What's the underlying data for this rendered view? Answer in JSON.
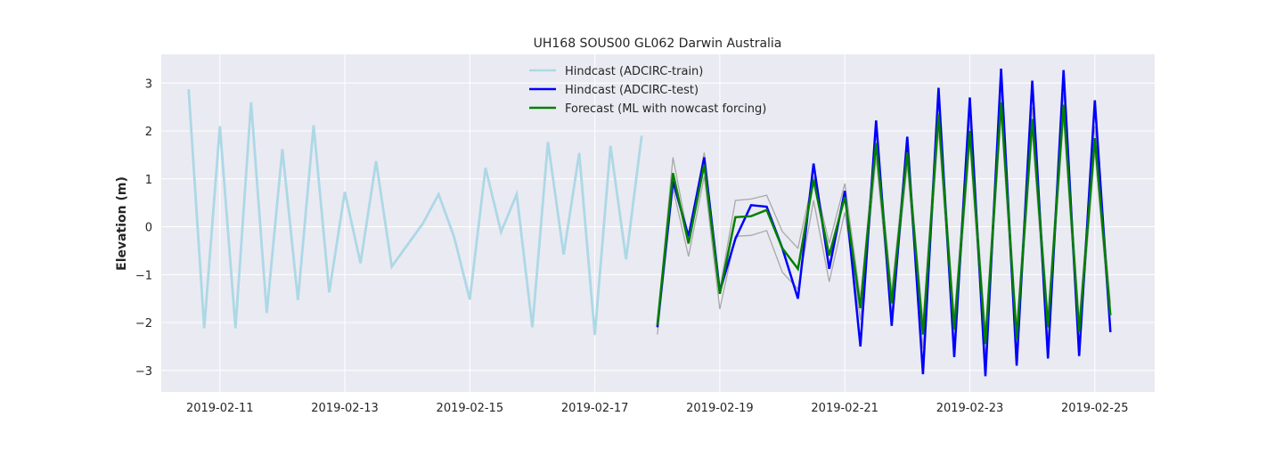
{
  "chart_data": {
    "type": "line",
    "title": "UH168 SOUS00 GL062 Darwin Australia",
    "xlabel": "",
    "ylabel": "Elevation (m)",
    "xlim": [
      "2019-02-10T01:30",
      "2019-02-25T23:00"
    ],
    "ylim": [
      -3.45,
      3.6
    ],
    "yticks": [
      -3,
      -2,
      -1,
      0,
      1,
      2,
      3
    ],
    "xticks": [
      "2019-02-11",
      "2019-02-13",
      "2019-02-15",
      "2019-02-17",
      "2019-02-19",
      "2019-02-21",
      "2019-02-23",
      "2019-02-25"
    ],
    "grid": true,
    "legend_position": "top-center",
    "colors": {
      "background": "#eaeaf2",
      "grid": "#ffffff",
      "train": "#add8e6",
      "test": "#0000ff",
      "forecast": "#008000",
      "band": "#a9a9a9"
    },
    "series": [
      {
        "name": "Hindcast (ADCIRC-train)",
        "role": "train",
        "points": [
          [
            "2019-02-10T12:00",
            2.87
          ],
          [
            "2019-02-10T18:00",
            -2.12
          ],
          [
            "2019-02-11T00:00",
            2.1
          ],
          [
            "2019-02-11T06:00",
            -2.12
          ],
          [
            "2019-02-11T12:00",
            2.6
          ],
          [
            "2019-02-11T18:00",
            -1.8
          ],
          [
            "2019-02-12T00:00",
            1.62
          ],
          [
            "2019-02-12T06:00",
            -1.53
          ],
          [
            "2019-02-12T12:00",
            2.12
          ],
          [
            "2019-02-12T18:00",
            -1.37
          ],
          [
            "2019-02-13T00:00",
            0.73
          ],
          [
            "2019-02-13T06:00",
            -0.76
          ],
          [
            "2019-02-13T12:00",
            1.37
          ],
          [
            "2019-02-13T18:00",
            -0.83
          ],
          [
            "2019-02-14T00:00",
            -0.38
          ],
          [
            "2019-02-14T06:00",
            0.07
          ],
          [
            "2019-02-14T12:00",
            0.68
          ],
          [
            "2019-02-14T18:00",
            -0.22
          ],
          [
            "2019-02-15T00:00",
            -1.52
          ],
          [
            "2019-02-15T06:00",
            1.23
          ],
          [
            "2019-02-15T12:00",
            -0.11
          ],
          [
            "2019-02-15T18:00",
            0.68
          ],
          [
            "2019-02-16T00:00",
            -2.1
          ],
          [
            "2019-02-16T06:00",
            1.77
          ],
          [
            "2019-02-16T12:00",
            -0.58
          ],
          [
            "2019-02-16T18:00",
            1.54
          ],
          [
            "2019-02-17T00:00",
            -2.26
          ],
          [
            "2019-02-17T06:00",
            1.69
          ],
          [
            "2019-02-17T12:00",
            -0.68
          ],
          [
            "2019-02-17T18:00",
            1.9
          ]
        ]
      },
      {
        "name": "Hindcast (ADCIRC-test)",
        "role": "test",
        "points": [
          [
            "2019-02-18T00:00",
            -2.1
          ],
          [
            "2019-02-18T06:00",
            0.95
          ],
          [
            "2019-02-18T12:00",
            -0.2
          ],
          [
            "2019-02-18T18:00",
            1.45
          ],
          [
            "2019-02-19T00:00",
            -1.35
          ],
          [
            "2019-02-19T06:00",
            -0.25
          ],
          [
            "2019-02-19T12:00",
            0.45
          ],
          [
            "2019-02-19T18:00",
            0.42
          ],
          [
            "2019-02-20T00:00",
            -0.45
          ],
          [
            "2019-02-20T06:00",
            -1.5
          ],
          [
            "2019-02-20T12:00",
            1.32
          ],
          [
            "2019-02-20T18:00",
            -0.88
          ],
          [
            "2019-02-21T00:00",
            0.75
          ],
          [
            "2019-02-21T06:00",
            -2.5
          ],
          [
            "2019-02-21T12:00",
            2.22
          ],
          [
            "2019-02-21T18:00",
            -2.07
          ],
          [
            "2019-02-22T00:00",
            1.88
          ],
          [
            "2019-02-22T06:00",
            -3.08
          ],
          [
            "2019-02-22T12:00",
            2.9
          ],
          [
            "2019-02-22T18:00",
            -2.72
          ],
          [
            "2019-02-23T00:00",
            2.7
          ],
          [
            "2019-02-23T06:00",
            -3.12
          ],
          [
            "2019-02-23T12:00",
            3.3
          ],
          [
            "2019-02-23T18:00",
            -2.9
          ],
          [
            "2019-02-24T00:00",
            3.05
          ],
          [
            "2019-02-24T06:00",
            -2.75
          ],
          [
            "2019-02-24T12:00",
            3.27
          ],
          [
            "2019-02-24T18:00",
            -2.7
          ],
          [
            "2019-02-25T00:00",
            2.64
          ],
          [
            "2019-02-25T06:00",
            -2.2
          ]
        ]
      },
      {
        "name": "Forecast (ML with nowcast forcing)",
        "role": "forecast",
        "points": [
          [
            "2019-02-18T00:00",
            -2.05
          ],
          [
            "2019-02-18T06:00",
            1.12
          ],
          [
            "2019-02-18T12:00",
            -0.35
          ],
          [
            "2019-02-18T18:00",
            1.3
          ],
          [
            "2019-02-19T00:00",
            -1.4
          ],
          [
            "2019-02-19T06:00",
            0.2
          ],
          [
            "2019-02-19T12:00",
            0.22
          ],
          [
            "2019-02-19T18:00",
            0.35
          ],
          [
            "2019-02-20T00:00",
            -0.45
          ],
          [
            "2019-02-20T06:00",
            -0.88
          ],
          [
            "2019-02-20T12:00",
            0.98
          ],
          [
            "2019-02-20T18:00",
            -0.6
          ],
          [
            "2019-02-21T00:00",
            0.62
          ],
          [
            "2019-02-21T06:00",
            -1.7
          ],
          [
            "2019-02-21T12:00",
            1.75
          ],
          [
            "2019-02-21T18:00",
            -1.6
          ],
          [
            "2019-02-22T00:00",
            1.55
          ],
          [
            "2019-02-22T06:00",
            -2.25
          ],
          [
            "2019-02-22T12:00",
            2.35
          ],
          [
            "2019-02-22T18:00",
            -2.15
          ],
          [
            "2019-02-23T00:00",
            2.0
          ],
          [
            "2019-02-23T06:00",
            -2.45
          ],
          [
            "2019-02-23T12:00",
            2.6
          ],
          [
            "2019-02-23T18:00",
            -2.35
          ],
          [
            "2019-02-24T00:00",
            2.25
          ],
          [
            "2019-02-24T06:00",
            -2.1
          ],
          [
            "2019-02-24T12:00",
            2.55
          ],
          [
            "2019-02-24T18:00",
            -2.2
          ],
          [
            "2019-02-25T00:00",
            1.85
          ],
          [
            "2019-02-25T06:00",
            -1.85
          ]
        ]
      },
      {
        "role": "band-upper",
        "points": [
          [
            "2019-02-18T00:00",
            -2.0
          ],
          [
            "2019-02-18T06:00",
            1.45
          ],
          [
            "2019-02-18T12:00",
            -0.25
          ],
          [
            "2019-02-18T18:00",
            1.55
          ],
          [
            "2019-02-19T00:00",
            -1.3
          ],
          [
            "2019-02-19T06:00",
            0.55
          ],
          [
            "2019-02-19T12:00",
            0.58
          ],
          [
            "2019-02-19T18:00",
            0.66
          ],
          [
            "2019-02-20T00:00",
            -0.1
          ],
          [
            "2019-02-20T06:00",
            -0.45
          ],
          [
            "2019-02-20T12:00",
            1.05
          ],
          [
            "2019-02-20T18:00",
            -0.35
          ],
          [
            "2019-02-21T00:00",
            0.9
          ],
          [
            "2019-02-21T06:00",
            -1.5
          ],
          [
            "2019-02-21T12:00",
            1.95
          ],
          [
            "2019-02-21T18:00",
            -1.35
          ],
          [
            "2019-02-22T00:00",
            1.75
          ],
          [
            "2019-02-22T06:00",
            -2.0
          ],
          [
            "2019-02-22T12:00",
            2.6
          ],
          [
            "2019-02-22T18:00",
            -1.9
          ],
          [
            "2019-02-23T00:00",
            2.25
          ],
          [
            "2019-02-23T06:00",
            -2.2
          ],
          [
            "2019-02-23T12:00",
            2.85
          ],
          [
            "2019-02-23T18:00",
            -2.1
          ],
          [
            "2019-02-24T00:00",
            2.5
          ],
          [
            "2019-02-24T06:00",
            -1.85
          ],
          [
            "2019-02-24T12:00",
            2.8
          ],
          [
            "2019-02-24T18:00",
            -1.95
          ],
          [
            "2019-02-25T00:00",
            2.1
          ],
          [
            "2019-02-25T06:00",
            -1.6
          ]
        ]
      },
      {
        "role": "band-lower",
        "points": [
          [
            "2019-02-18T00:00",
            -2.25
          ],
          [
            "2019-02-18T06:00",
            0.8
          ],
          [
            "2019-02-18T12:00",
            -0.62
          ],
          [
            "2019-02-18T18:00",
            1.05
          ],
          [
            "2019-02-19T00:00",
            -1.72
          ],
          [
            "2019-02-19T06:00",
            -0.2
          ],
          [
            "2019-02-19T12:00",
            -0.18
          ],
          [
            "2019-02-19T18:00",
            -0.08
          ],
          [
            "2019-02-20T00:00",
            -0.95
          ],
          [
            "2019-02-20T06:00",
            -1.3
          ],
          [
            "2019-02-20T12:00",
            0.55
          ],
          [
            "2019-02-20T18:00",
            -1.15
          ],
          [
            "2019-02-21T00:00",
            0.3
          ],
          [
            "2019-02-21T06:00",
            -1.95
          ],
          [
            "2019-02-21T12:00",
            1.45
          ],
          [
            "2019-02-21T18:00",
            -1.85
          ],
          [
            "2019-02-22T00:00",
            1.3
          ],
          [
            "2019-02-22T06:00",
            -2.55
          ],
          [
            "2019-02-22T12:00",
            2.05
          ],
          [
            "2019-02-22T18:00",
            -2.45
          ],
          [
            "2019-02-23T00:00",
            1.75
          ],
          [
            "2019-02-23T06:00",
            -2.75
          ],
          [
            "2019-02-23T12:00",
            2.35
          ],
          [
            "2019-02-23T18:00",
            -2.65
          ],
          [
            "2019-02-24T00:00",
            2.0
          ],
          [
            "2019-02-24T06:00",
            -2.4
          ],
          [
            "2019-02-24T12:00",
            2.3
          ],
          [
            "2019-02-24T18:00",
            -2.5
          ],
          [
            "2019-02-25T00:00",
            1.6
          ],
          [
            "2019-02-25T06:00",
            -2.1
          ]
        ]
      }
    ]
  }
}
